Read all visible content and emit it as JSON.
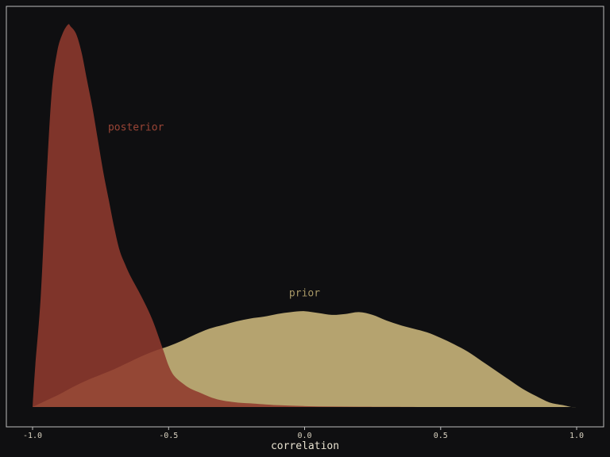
{
  "chart_data": {
    "type": "area",
    "title": "",
    "xlabel": "correlation",
    "ylabel": "",
    "xlim": [
      -1.0,
      1.0
    ],
    "ylim": [
      0,
      4.15
    ],
    "grid": false,
    "xticks": [
      -1.0,
      -0.5,
      0.0,
      0.5,
      1.0
    ],
    "xtick_labels": [
      "-1.0",
      "-0.5",
      "0.0",
      "0.5",
      "1.0"
    ],
    "yticks": [],
    "colors": {
      "prior": "#b5a36f",
      "posterior": "#8f3a2e",
      "posterior_label": "#9a4536",
      "prior_label": "#a89866",
      "background": "#0f0f11",
      "frame": "#bdbdbd"
    },
    "annotations": [
      {
        "text": "posterior",
        "series": "posterior",
        "x": -0.62,
        "y": 3.0
      },
      {
        "text": "prior",
        "series": "prior",
        "x": 0.0,
        "y": 1.2
      }
    ],
    "series": [
      {
        "name": "prior",
        "x": [
          -1.0,
          -0.95,
          -0.9,
          -0.85,
          -0.8,
          -0.75,
          -0.7,
          -0.65,
          -0.6,
          -0.55,
          -0.5,
          -0.45,
          -0.4,
          -0.35,
          -0.3,
          -0.25,
          -0.2,
          -0.15,
          -0.1,
          -0.05,
          0.0,
          0.05,
          0.1,
          0.15,
          0.2,
          0.25,
          0.3,
          0.35,
          0.4,
          0.45,
          0.5,
          0.55,
          0.6,
          0.65,
          0.7,
          0.75,
          0.8,
          0.85,
          0.9,
          0.95,
          0.98,
          1.0
        ],
        "y": [
          0.0,
          0.07,
          0.14,
          0.22,
          0.29,
          0.35,
          0.41,
          0.48,
          0.55,
          0.61,
          0.66,
          0.72,
          0.79,
          0.85,
          0.89,
          0.93,
          0.96,
          0.98,
          1.01,
          1.03,
          1.04,
          1.02,
          1.0,
          1.01,
          1.03,
          1.0,
          0.94,
          0.89,
          0.85,
          0.81,
          0.75,
          0.68,
          0.6,
          0.5,
          0.4,
          0.3,
          0.2,
          0.12,
          0.05,
          0.02,
          0.0,
          0.0
        ]
      },
      {
        "name": "posterior",
        "x": [
          -1.0,
          -0.99,
          -0.97,
          -0.95,
          -0.93,
          -0.91,
          -0.89,
          -0.87,
          -0.86,
          -0.84,
          -0.82,
          -0.8,
          -0.78,
          -0.76,
          -0.74,
          -0.72,
          -0.7,
          -0.68,
          -0.66,
          -0.64,
          -0.6,
          -0.56,
          -0.52,
          -0.5,
          -0.48,
          -0.45,
          -0.42,
          -0.38,
          -0.34,
          -0.3,
          -0.25,
          -0.2,
          -0.1,
          0.0,
          0.1,
          0.2,
          0.3,
          0.5,
          0.7,
          1.0
        ],
        "y": [
          0.0,
          0.45,
          1.2,
          2.4,
          3.4,
          3.85,
          4.05,
          4.15,
          4.13,
          4.05,
          3.85,
          3.55,
          3.25,
          2.9,
          2.55,
          2.25,
          1.95,
          1.7,
          1.55,
          1.42,
          1.2,
          0.95,
          0.62,
          0.45,
          0.34,
          0.26,
          0.2,
          0.15,
          0.1,
          0.07,
          0.05,
          0.04,
          0.02,
          0.01,
          0.005,
          0.003,
          0.002,
          0.0,
          0.0,
          0.0
        ]
      }
    ]
  }
}
